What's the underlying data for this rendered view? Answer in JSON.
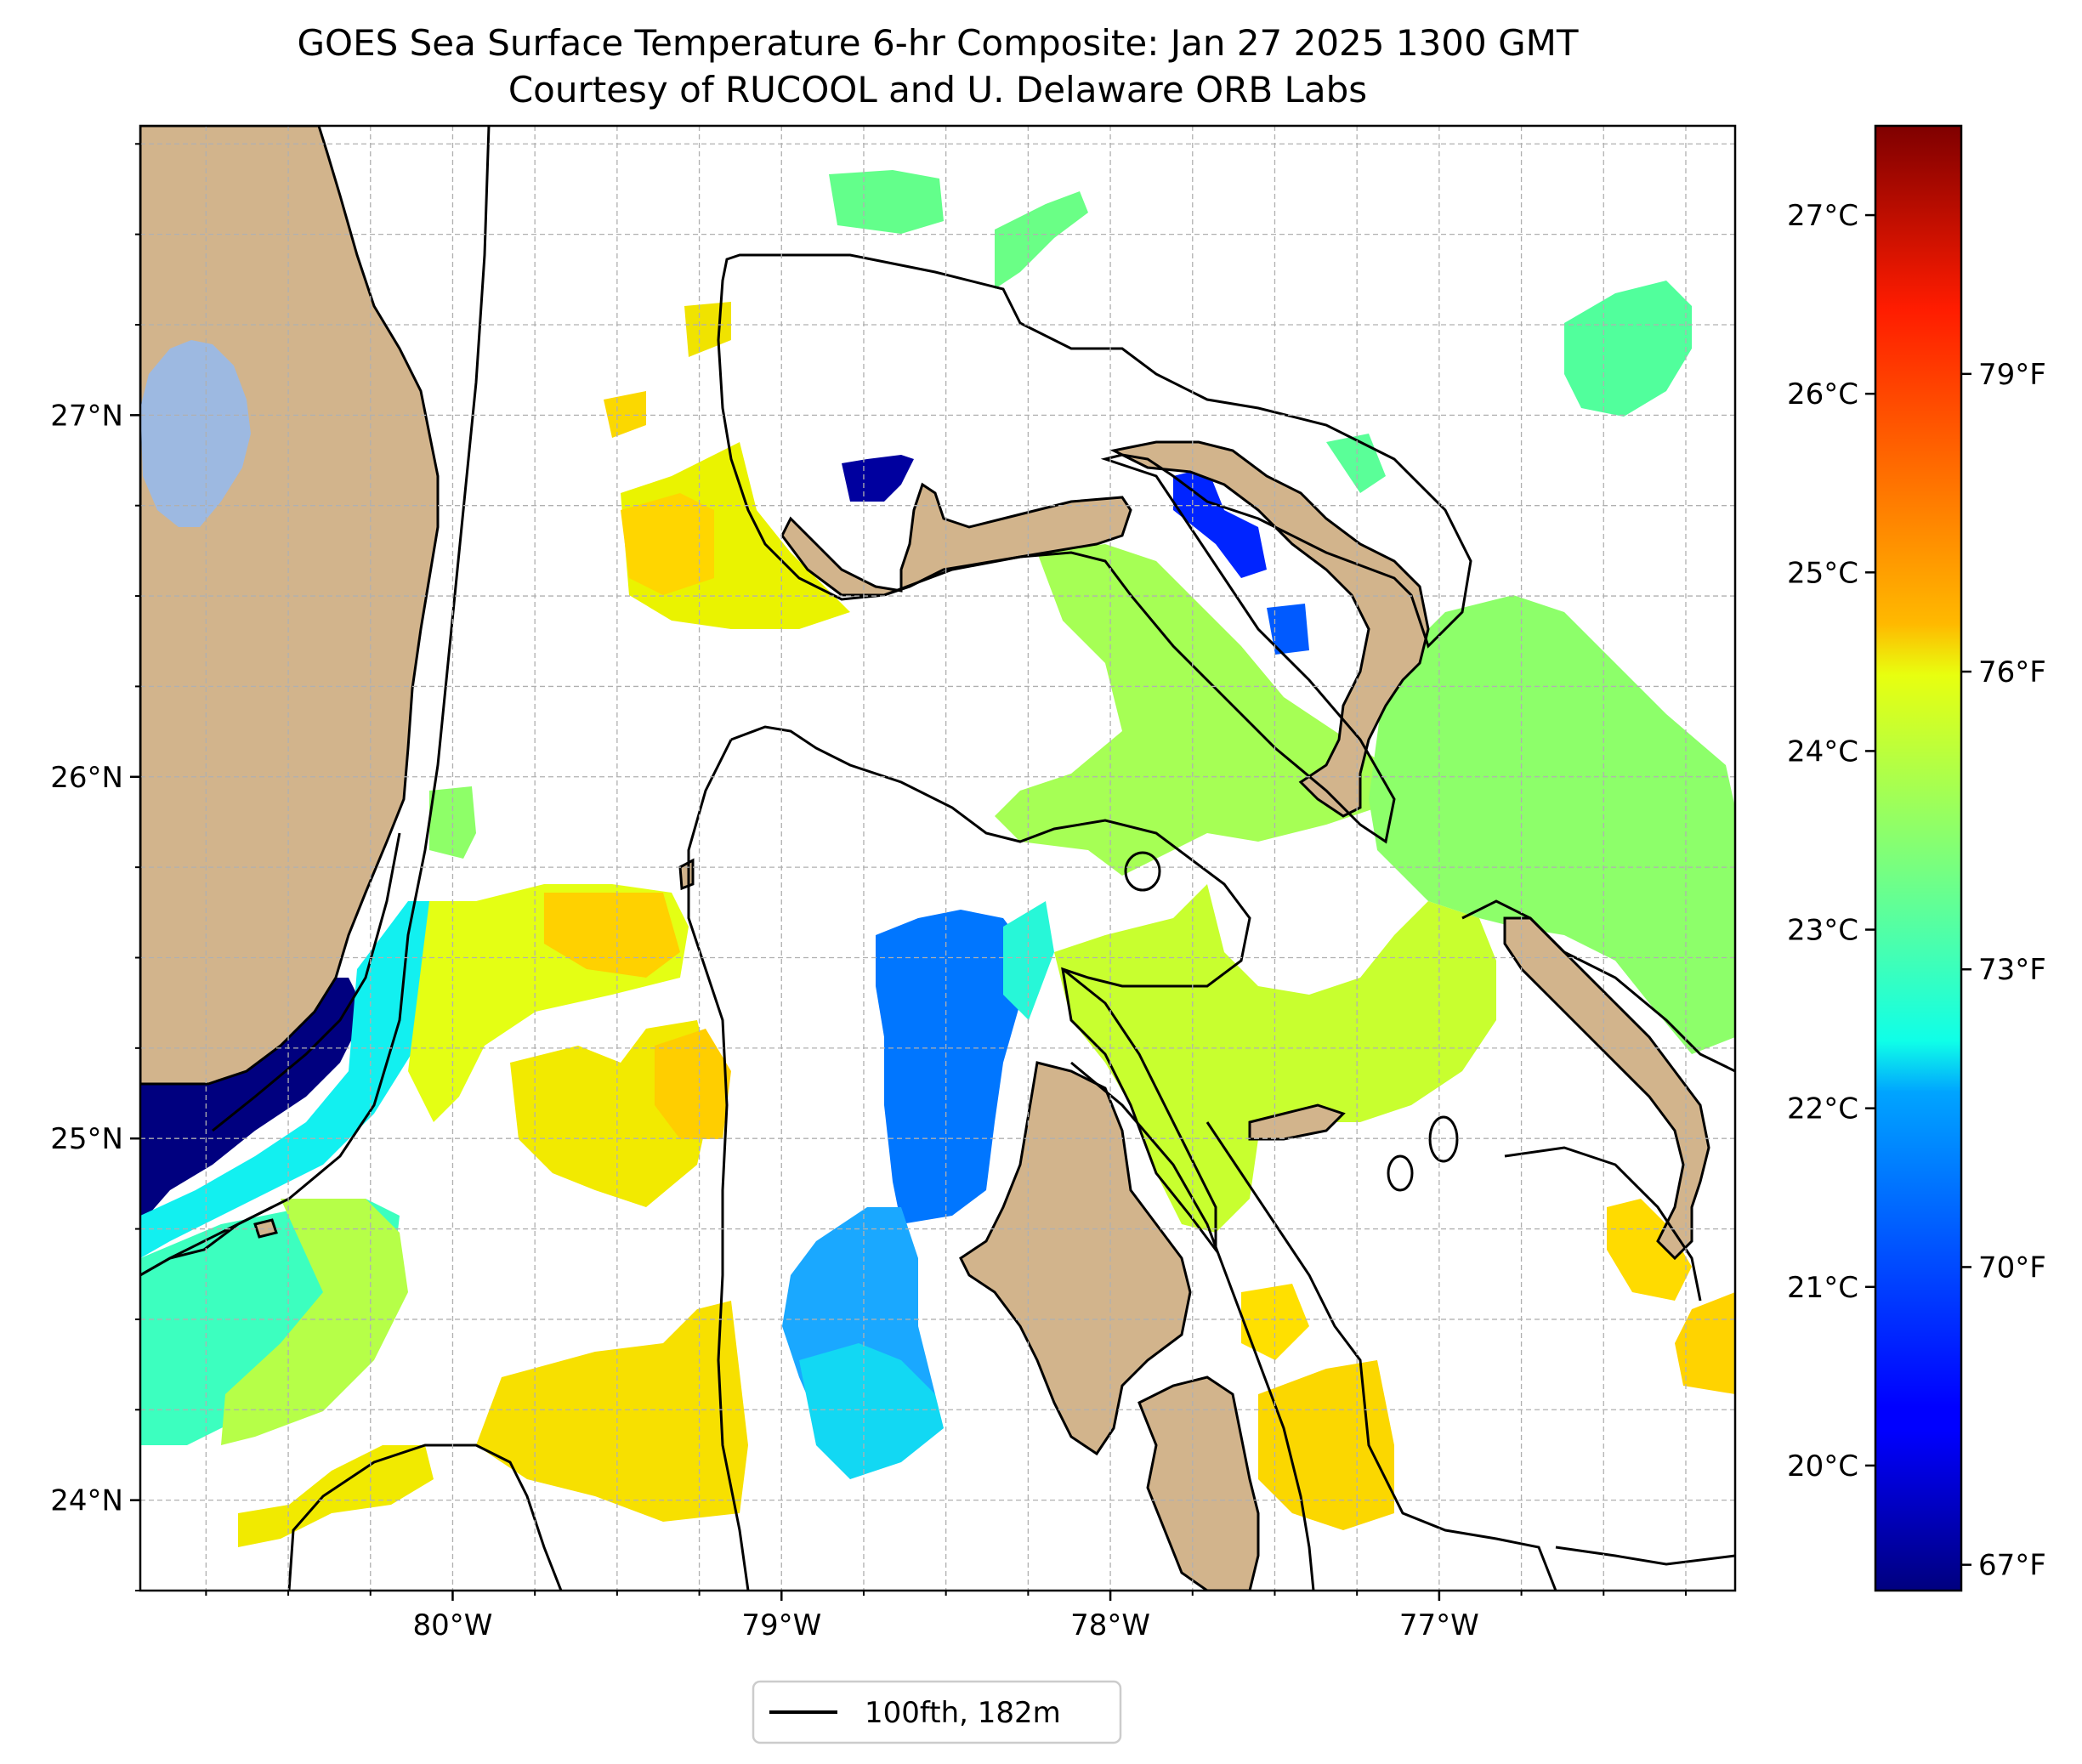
{
  "title": {
    "line1": "GOES Sea Surface Temperature 6-hr Composite: Jan 27 2025 1300 GMT",
    "line2": "Courtesy of RUCOOL and U. Delaware ORB Labs"
  },
  "map": {
    "lon_range": [
      -80.95,
      -76.1
    ],
    "lat_range": [
      23.75,
      27.8
    ],
    "lon_ticks": [
      {
        "value": -80,
        "label": "80°W"
      },
      {
        "value": -79,
        "label": "79°W"
      },
      {
        "value": -78,
        "label": "78°W"
      },
      {
        "value": -77,
        "label": "77°W"
      }
    ],
    "lat_ticks": [
      {
        "value": 24,
        "label": "24°N"
      },
      {
        "value": 25,
        "label": "25°N"
      },
      {
        "value": 26,
        "label": "26°N"
      },
      {
        "value": 27,
        "label": "27°N"
      }
    ],
    "grid": true,
    "land_color": "#d2b48c",
    "lake_color": "#9db9e1",
    "contour_color": "#000000"
  },
  "legend": {
    "label": "100fth, 182m",
    "placement": "bottom-center"
  },
  "colorbar": {
    "colormap": "jet",
    "range_c": [
      19.3,
      27.5
    ],
    "celsius_ticks": [
      {
        "value": 20,
        "label": "20°C"
      },
      {
        "value": 21,
        "label": "21°C"
      },
      {
        "value": 22,
        "label": "22°C"
      },
      {
        "value": 23,
        "label": "23°C"
      },
      {
        "value": 24,
        "label": "24°C"
      },
      {
        "value": 25,
        "label": "25°C"
      },
      {
        "value": 26,
        "label": "26°C"
      },
      {
        "value": 27,
        "label": "27°C"
      }
    ],
    "fahrenheit_ticks": [
      {
        "value": 67,
        "label": "67°F"
      },
      {
        "value": 70,
        "label": "70°F"
      },
      {
        "value": 73,
        "label": "73°F"
      },
      {
        "value": 76,
        "label": "76°F"
      },
      {
        "value": 79,
        "label": "79°F"
      }
    ]
  }
}
